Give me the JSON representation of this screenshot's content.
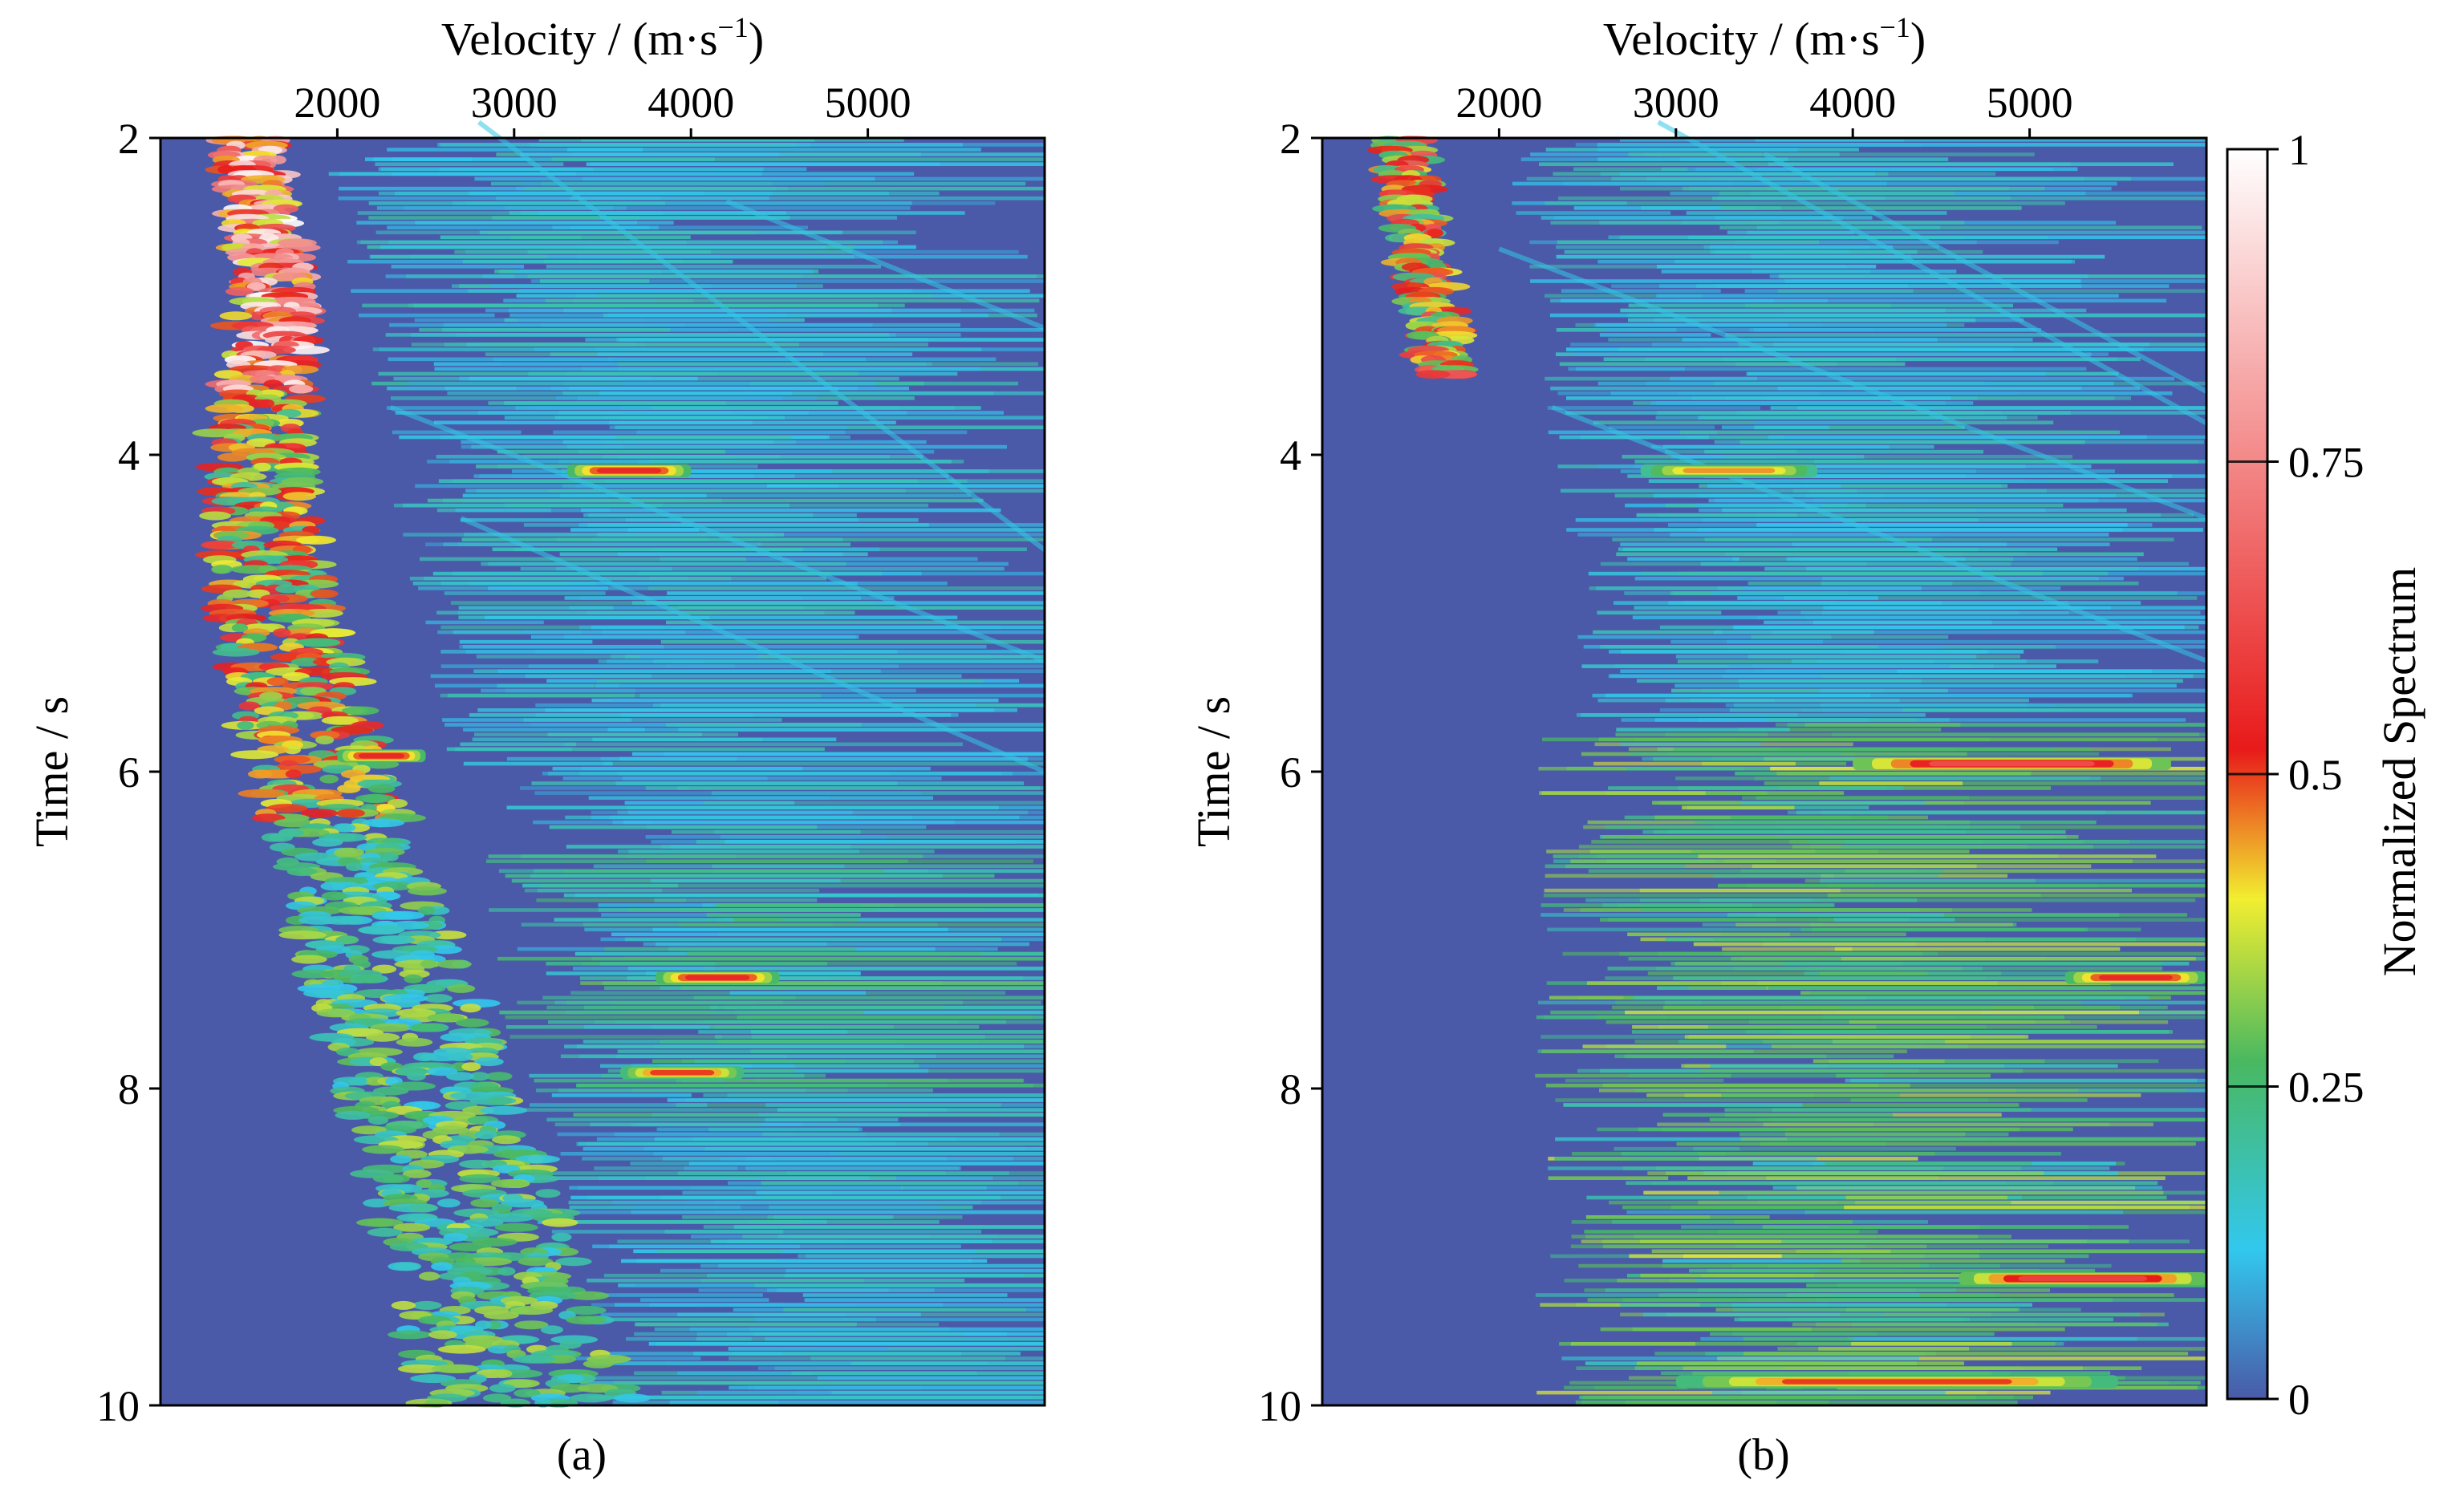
{
  "figure": {
    "x_axis_label": "Velocity / (m·s",
    "x_axis_sup": "−1",
    "x_axis_close": ")",
    "y_axis_label": "Time / s",
    "colorbar_label": "Normalized Spectrum"
  },
  "chart_data": [
    {
      "type": "heatmap",
      "panel_label": "(a)",
      "xlabel": "Velocity / (m·s⁻¹)",
      "ylabel": "Time / s",
      "xlim": [
        1000,
        6000
      ],
      "ylim": [
        10,
        2
      ],
      "x_ticks": [
        2000,
        3000,
        4000,
        5000
      ],
      "y_ticks": [
        2,
        4,
        6,
        8,
        10
      ],
      "colormap": [
        "#4a5aa8",
        "#32c8ee",
        "#49b860",
        "#f2ee30",
        "#e81a1a",
        "#ffffff"
      ],
      "features": {
        "vertical_energy_trend": [
          [
            2.0,
            1500
          ],
          [
            3.0,
            1650
          ],
          [
            4.0,
            1550
          ],
          [
            5.0,
            1650
          ],
          [
            6.0,
            1900
          ],
          [
            7.0,
            2200
          ],
          [
            8.0,
            2500
          ],
          [
            9.0,
            2800
          ],
          [
            10.0,
            3100
          ]
        ],
        "strong_events": [
          {
            "t": 4.1,
            "v0": 3300,
            "v1": 4000,
            "amp": 0.55
          },
          {
            "t": 5.9,
            "v0": 2000,
            "v1": 2500,
            "amp": 0.55
          },
          {
            "t": 7.3,
            "v0": 3800,
            "v1": 4500,
            "amp": 0.55
          },
          {
            "t": 7.9,
            "v0": 3600,
            "v1": 4300,
            "amp": 0.5
          }
        ]
      }
    },
    {
      "type": "heatmap",
      "panel_label": "(b)",
      "xlabel": "Velocity / (m·s⁻¹)",
      "ylabel": "Time / s",
      "xlim": [
        1000,
        6000
      ],
      "ylim": [
        10,
        2
      ],
      "x_ticks": [
        2000,
        3000,
        4000,
        5000
      ],
      "y_ticks": [
        2,
        4,
        6,
        8,
        10
      ],
      "colormap": [
        "#4a5aa8",
        "#32c8ee",
        "#49b860",
        "#f2ee30",
        "#e81a1a",
        "#ffffff"
      ],
      "colorbar": {
        "range": [
          0,
          1
        ],
        "ticks": [
          0,
          0.25,
          0.5,
          0.75,
          1
        ],
        "tick_labels": [
          "0",
          "0.25",
          "0.5",
          "0.75",
          "1"
        ]
      },
      "features": {
        "vertical_energy_trend": [
          [
            2.0,
            1450
          ],
          [
            3.0,
            1600
          ],
          [
            3.5,
            1700
          ]
        ],
        "strong_events": [
          {
            "t": 4.1,
            "v0": 2800,
            "v1": 3800,
            "amp": 0.45
          },
          {
            "t": 5.95,
            "v0": 4000,
            "v1": 5800,
            "amp": 0.62
          },
          {
            "t": 7.3,
            "v0": 5200,
            "v1": 6000,
            "amp": 0.55
          },
          {
            "t": 9.2,
            "v0": 4600,
            "v1": 6000,
            "amp": 0.6
          },
          {
            "t": 9.85,
            "v0": 3000,
            "v1": 5500,
            "amp": 0.5
          }
        ]
      }
    }
  ]
}
